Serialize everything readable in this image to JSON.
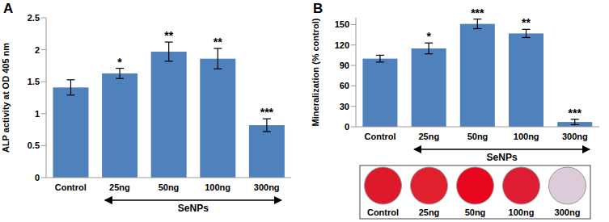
{
  "chart_data": [
    {
      "panel_label": "A",
      "type": "bar",
      "categories": [
        "Control",
        "25ng",
        "50ng",
        "100ng",
        "300ng"
      ],
      "values": [
        1.41,
        1.63,
        1.97,
        1.86,
        0.82
      ],
      "errors": [
        0.12,
        0.08,
        0.15,
        0.16,
        0.1
      ],
      "annotations": [
        null,
        "*",
        "**",
        "**",
        "***"
      ],
      "color": "#4f81bd",
      "ylabel": "ALP activity at OD 405 nm",
      "ylim": [
        0,
        2.5
      ],
      "yticks": [
        0,
        0.5,
        1,
        1.5,
        2,
        2.5
      ],
      "grid": false,
      "group_label": "SeNPs"
    },
    {
      "panel_label": "B",
      "type": "bar",
      "categories": [
        "Control",
        "25ng",
        "50ng",
        "100ng",
        "300ng"
      ],
      "values": [
        100,
        115,
        151,
        137,
        7
      ],
      "errors": [
        5,
        8,
        7,
        6,
        4
      ],
      "annotations": [
        null,
        "*",
        "***",
        "**",
        "***"
      ],
      "color": "#4f81bd",
      "ylabel": "Mineralization (% control)",
      "ylim": [
        0,
        160
      ],
      "yticks": [
        0,
        30,
        60,
        90,
        120,
        150
      ],
      "grid": false,
      "group_label": "SeNPs",
      "wells": {
        "labels": [
          "Control",
          "25ng",
          "50ng",
          "100ng",
          "300ng"
        ],
        "colors": [
          "#dc1a2c",
          "#e0202e",
          "#e8061e",
          "#de1c32",
          "#dccbd8"
        ]
      }
    }
  ]
}
